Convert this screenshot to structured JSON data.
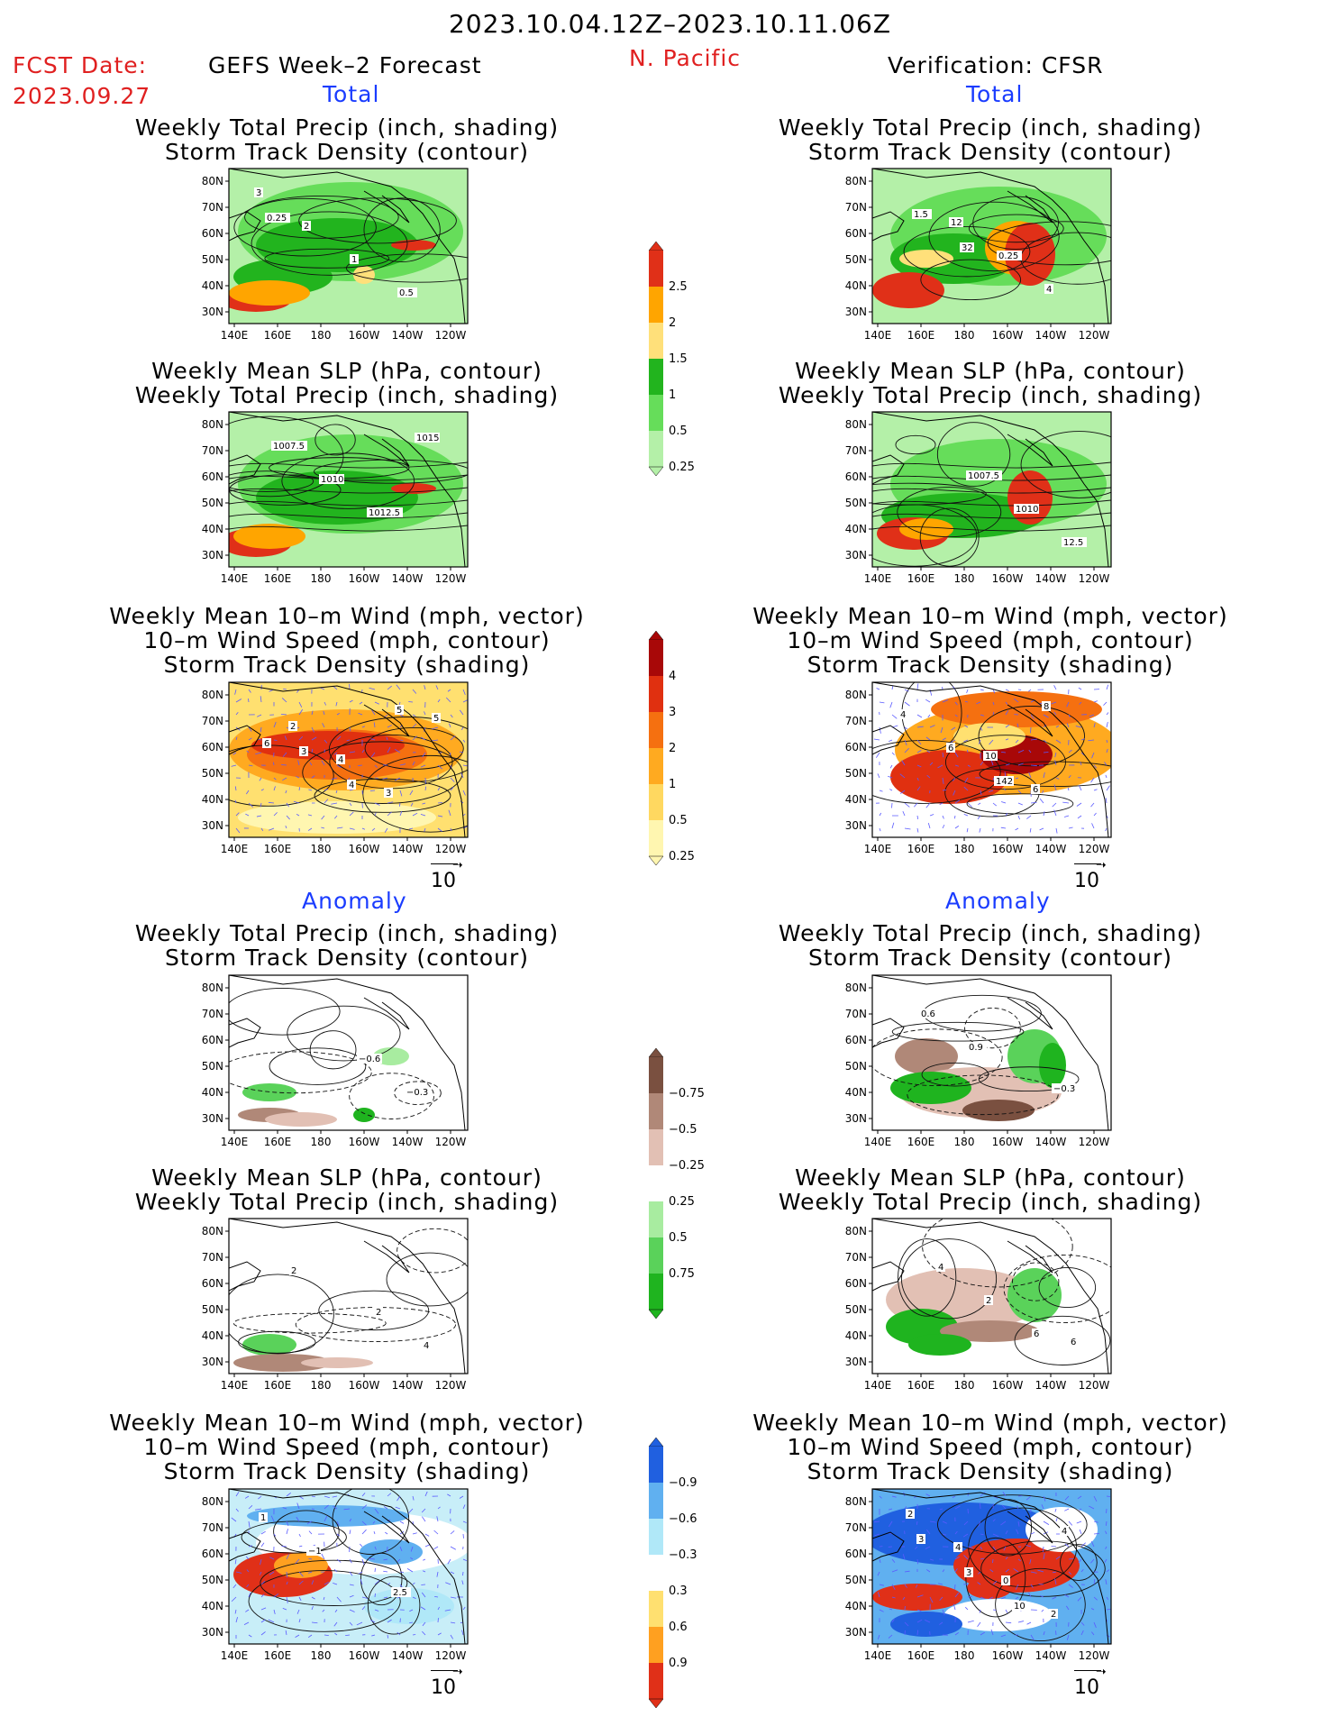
{
  "header": {
    "period": "2023.10.04.12Z–2023.10.11.06Z",
    "fcst_label": "FCST Date:",
    "fcst_date": "2023.09.27",
    "left_title": "GEFS Week–2 Forecast",
    "region": "N. Pacific",
    "right_title": "Verification: CFSR"
  },
  "sections": {
    "total": "Total",
    "anomaly": "Anomaly"
  },
  "titles": {
    "precip_track": [
      "Weekly Total Precip (inch, shading)",
      "Storm Track Density (contour)"
    ],
    "slp_precip": [
      "Weekly Mean SLP (hPa, contour)",
      "Weekly Total Precip (inch, shading)"
    ],
    "wind_track": [
      "Weekly Mean 10–m Wind (mph, vector)",
      "10–m Wind Speed (mph, contour)",
      "Storm Track Density (shading)"
    ]
  },
  "vector_ref": "10",
  "axes": {
    "lat_ticks": [
      "80N",
      "70N",
      "60N",
      "50N",
      "40N",
      "30N"
    ],
    "lon_ticks": [
      "140E",
      "160E",
      "180",
      "160W",
      "140W",
      "120W"
    ]
  },
  "colorbars": {
    "total_precip": {
      "labels": [
        "0.25",
        "0.5",
        "1",
        "1.5",
        "2",
        "2.5"
      ],
      "colors": [
        "#b4f0a8",
        "#66dd5a",
        "#22b41e",
        "#ffe07a",
        "#ffa500",
        "#e03018"
      ]
    },
    "total_track": {
      "labels": [
        "0.25",
        "0.5",
        "1",
        "2",
        "3",
        "4"
      ],
      "colors": [
        "#fff6b0",
        "#ffd860",
        "#ffaa20",
        "#f57010",
        "#e03010",
        "#a80808"
      ]
    },
    "anom_precip": {
      "labels": [
        "0.75",
        "0.5",
        "0.25",
        "−0.25",
        "−0.5",
        "−0.75"
      ],
      "colors": [
        "#1fb41f",
        "#5ad25a",
        "#a8eca0",
        "#ffffff",
        "#e2c0b4",
        "#b08878",
        "#7a5040"
      ]
    },
    "anom_track": {
      "labels": [
        "0.9",
        "0.6",
        "0.3",
        "−0.3",
        "−0.6",
        "−0.9"
      ],
      "colors": [
        "#e03018",
        "#ffa020",
        "#ffe070",
        "#ffffff",
        "#b0e8f8",
        "#60b0f0",
        "#2060e0"
      ]
    }
  },
  "panels": [
    {
      "id": "fc-total-precip",
      "contour_labels": [
        "3",
        "2",
        "1",
        "0.5",
        "0.25"
      ]
    },
    {
      "id": "fc-total-slp",
      "contour_labels": [
        "1007.5",
        "1010",
        "1012.5",
        "1015"
      ]
    },
    {
      "id": "fc-total-wind",
      "contour_labels": [
        "2",
        "4",
        "3",
        "5",
        "3",
        "4",
        "5",
        "6"
      ]
    },
    {
      "id": "ob-total-precip",
      "contour_labels": [
        "12",
        "0.25",
        "4",
        "1.5",
        "32"
      ]
    },
    {
      "id": "ob-total-slp",
      "contour_labels": [
        "1007.5",
        "1010",
        "12.5"
      ]
    },
    {
      "id": "ob-total-wind",
      "contour_labels": [
        "10",
        "6",
        "4",
        "6",
        "142",
        "8"
      ]
    },
    {
      "id": "fc-anom-precip",
      "contour_labels": [
        "−0.6",
        "−0.3"
      ]
    },
    {
      "id": "fc-anom-slp",
      "contour_labels": [
        "2",
        "4",
        "2"
      ]
    },
    {
      "id": "fc-anom-wind",
      "contour_labels": [
        "2.5",
        "1",
        "−1"
      ]
    },
    {
      "id": "ob-anom-precip",
      "contour_labels": [
        "−0.3",
        "0.6",
        "0.9"
      ]
    },
    {
      "id": "ob-anom-slp",
      "contour_labels": [
        "6",
        "4",
        "2",
        "6"
      ]
    },
    {
      "id": "ob-anom-wind",
      "contour_labels": [
        "2",
        "4",
        "0",
        "2",
        "3",
        "3",
        "10",
        "4"
      ]
    }
  ]
}
